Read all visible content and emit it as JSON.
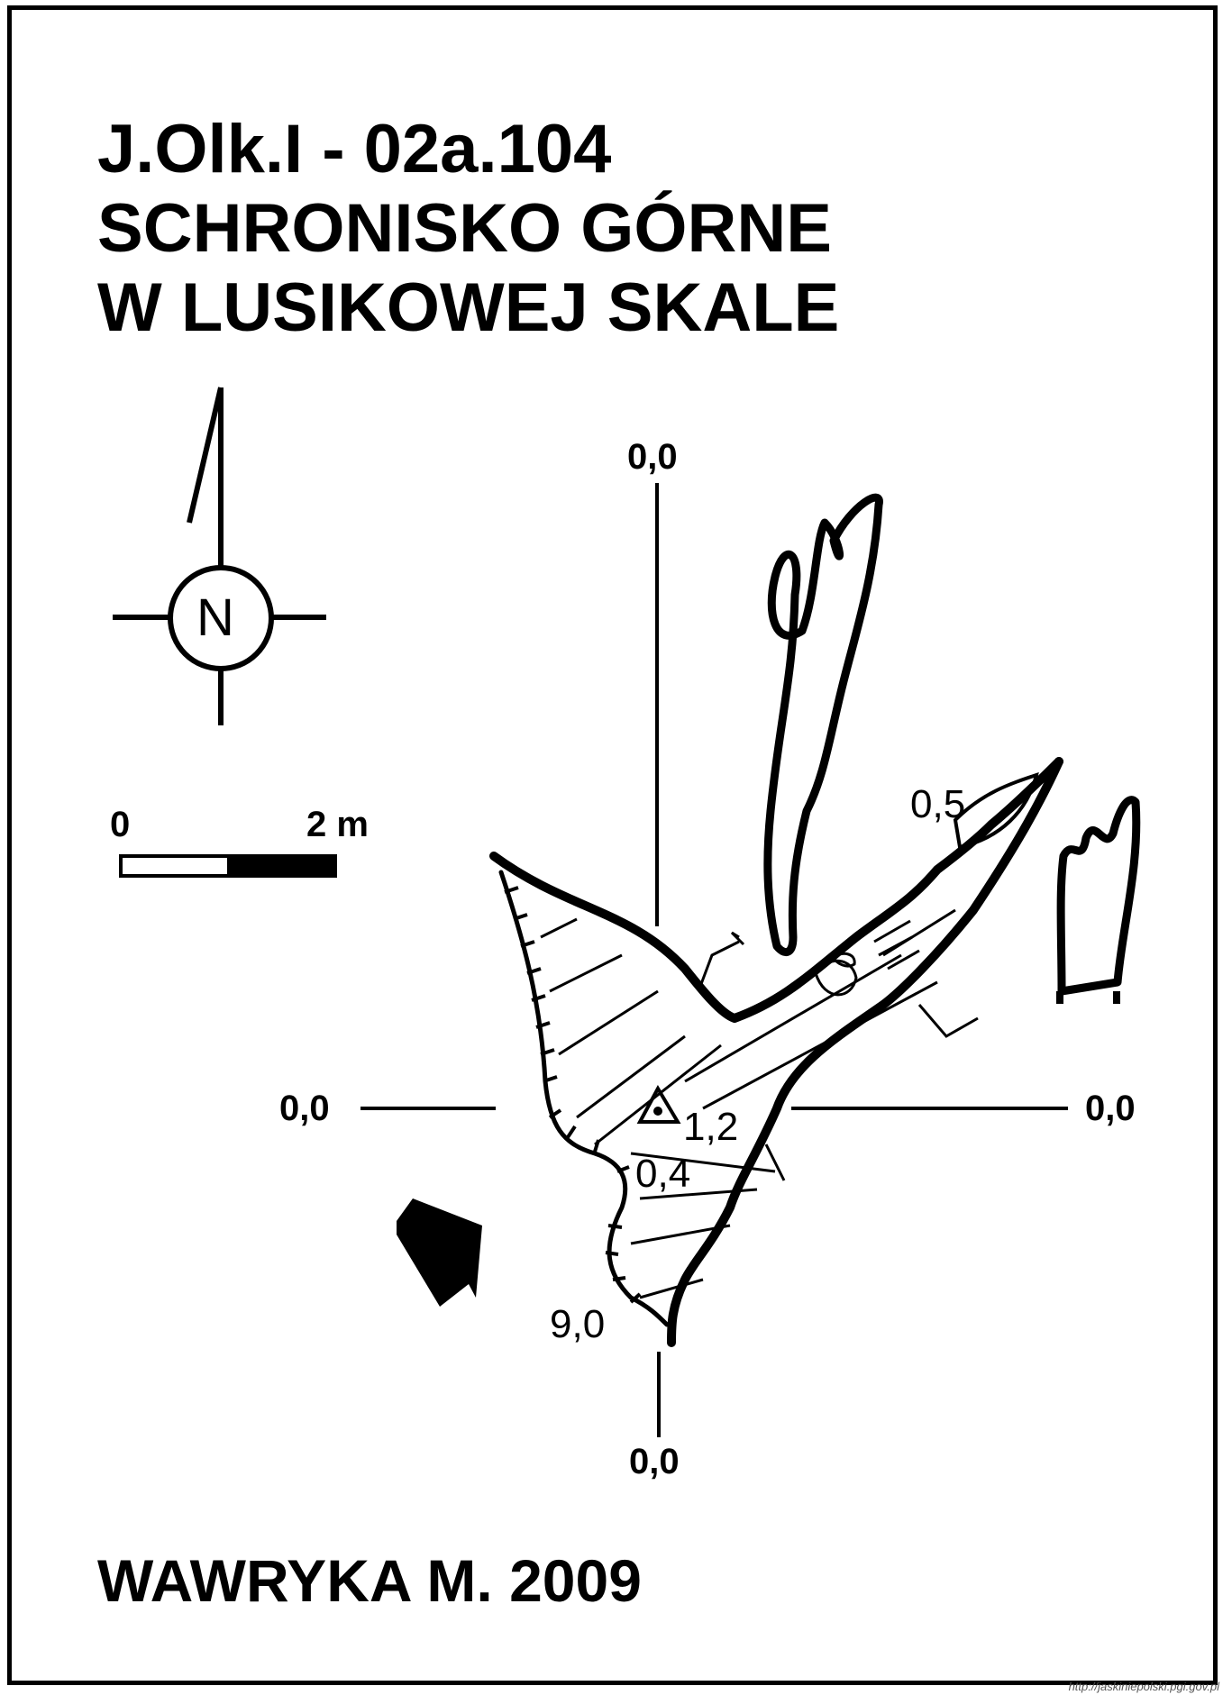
{
  "title": {
    "code": "J.Olk.I - 02a.104",
    "line1": "SCHRONISKO GÓRNE",
    "line2": "W LUSIKOWEJ SKALE"
  },
  "north_arrow": {
    "letter": "N",
    "icon": "north-arrow-icon"
  },
  "scale_bar": {
    "start_label": "0",
    "end_label": "2 m",
    "length_m": 2
  },
  "section_labels": {
    "top": "0,0",
    "left": "0,0",
    "right": "0,0",
    "bottom": "0,0"
  },
  "depth_labels": {
    "d05": "0,5",
    "d12": "1,2",
    "d04": "0,4",
    "d90": "9,0"
  },
  "entrance_arrow": {
    "icon": "entrance-arrow-icon"
  },
  "author": "WAWRYKA M. 2009",
  "footer_url": "http://jaskiniepolski.pgi.gov.pl"
}
